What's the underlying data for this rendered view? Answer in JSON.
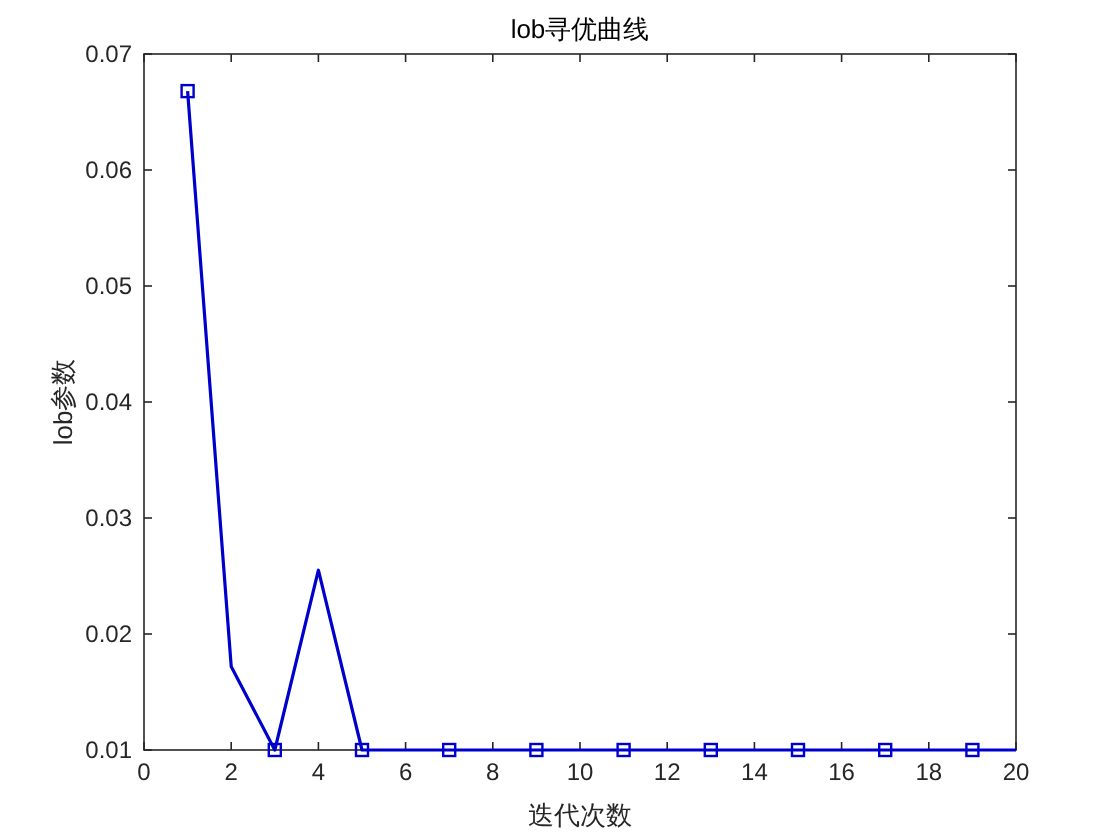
{
  "chart_data": {
    "type": "line",
    "title": "lob寻优曲线",
    "xlabel": "迭代次数",
    "ylabel": "lob参数",
    "xlim": [
      0,
      20
    ],
    "xticks": [
      0,
      2,
      4,
      6,
      8,
      10,
      12,
      14,
      16,
      18,
      20
    ],
    "ylim": [
      0.01,
      0.07
    ],
    "yticks": [
      0.01,
      0.02,
      0.03,
      0.04,
      0.05,
      0.06,
      0.07
    ],
    "grid": false,
    "series": [
      {
        "color": "#0000cc",
        "marker": "none",
        "x": [
          1,
          2,
          3,
          4,
          5,
          6,
          7,
          8,
          9,
          10,
          11,
          12,
          13,
          14,
          15,
          16,
          17,
          18,
          19,
          20
        ],
        "values": [
          0.0668,
          0.0172,
          0.01,
          0.0255,
          0.01,
          0.01,
          0.01,
          0.01,
          0.01,
          0.01,
          0.01,
          0.01,
          0.01,
          0.01,
          0.01,
          0.01,
          0.01,
          0.01,
          0.01,
          0.01
        ]
      },
      {
        "type": "scatter",
        "color": "#0000cc",
        "marker": "square",
        "x": [
          1,
          3,
          5,
          7,
          9,
          11,
          13,
          15,
          17,
          19
        ],
        "values": [
          0.0668,
          0.01,
          0.01,
          0.01,
          0.01,
          0.01,
          0.01,
          0.01,
          0.01,
          0.01
        ]
      }
    ]
  }
}
